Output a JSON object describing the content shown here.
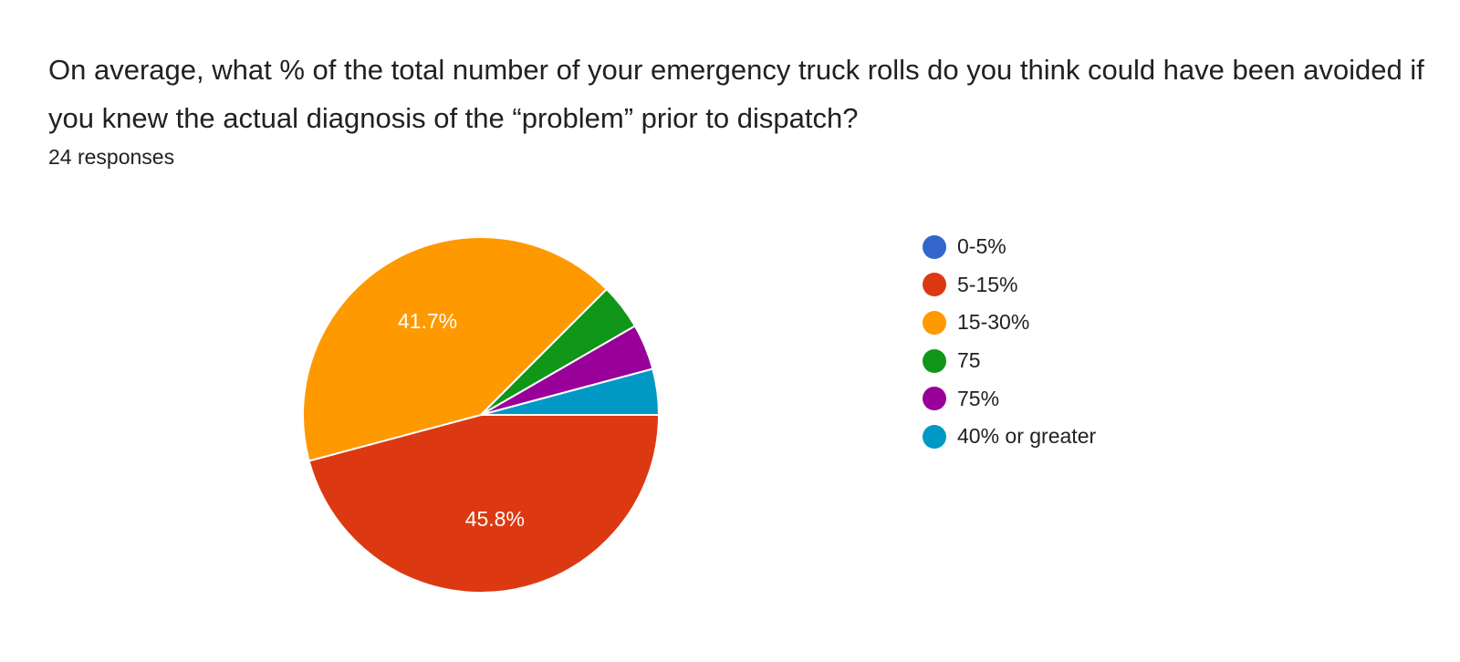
{
  "header": {
    "question": "On average, what % of the total number of your emergency truck rolls do you think could have been avoided if you knew the actual diagnosis of the “problem” prior to dispatch?",
    "responses": "24 responses"
  },
  "chart_data": {
    "type": "pie",
    "title": "",
    "total_responses": 24,
    "legend_position": "right",
    "slices": [
      {
        "label": "0-5%",
        "value": 0,
        "percent_label": "",
        "color": "#3366cc"
      },
      {
        "label": "5-15%",
        "value": 11,
        "percent_label": "45.8%",
        "color": "#dc3912"
      },
      {
        "label": "15-30%",
        "value": 10,
        "percent_label": "41.7%",
        "color": "#ff9900"
      },
      {
        "label": "75",
        "value": 1,
        "percent_label": "",
        "color": "#109618"
      },
      {
        "label": "75%",
        "value": 1,
        "percent_label": "",
        "color": "#990099"
      },
      {
        "label": "40% or greater",
        "value": 1,
        "percent_label": "",
        "color": "#0099c6"
      }
    ]
  }
}
